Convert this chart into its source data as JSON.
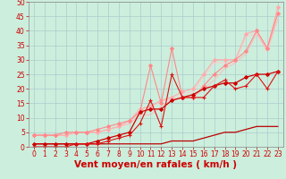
{
  "xlabel": "Vent moyen/en rafales ( km/h )",
  "background_color": "#cceedd",
  "grid_color": "#aacccc",
  "x_values": [
    0,
    1,
    2,
    3,
    4,
    5,
    6,
    7,
    8,
    9,
    10,
    11,
    12,
    13,
    14,
    15,
    16,
    17,
    18,
    19,
    20,
    21,
    22,
    23
  ],
  "line_dark1_y": [
    1,
    1,
    1,
    1,
    1,
    1,
    1,
    1,
    1,
    1,
    1,
    1,
    1,
    2,
    2,
    2,
    3,
    4,
    5,
    5,
    6,
    7,
    7,
    7
  ],
  "line_dark1_color": "#bb0000",
  "line_dark2_y": [
    1,
    1,
    1,
    1,
    1,
    1,
    2,
    3,
    4,
    5,
    12,
    13,
    13,
    16,
    17,
    18,
    20,
    21,
    22,
    22,
    24,
    25,
    25,
    26
  ],
  "line_dark2_color": "#cc0000",
  "line_dark3_y": [
    0,
    0,
    0,
    0,
    1,
    1,
    1,
    2,
    3,
    4,
    8,
    16,
    7,
    25,
    17,
    17,
    17,
    21,
    23,
    20,
    21,
    25,
    20,
    26
  ],
  "line_dark3_color": "#dd1111",
  "line_pink1_y": [
    4,
    4,
    4,
    4,
    5,
    5,
    5,
    6,
    7,
    9,
    13,
    14,
    16,
    17,
    19,
    20,
    25,
    30,
    30,
    30,
    39,
    40,
    34,
    48
  ],
  "line_pink1_color": "#ffaaaa",
  "line_pink2_y": [
    4,
    4,
    4,
    4,
    5,
    5,
    5,
    6,
    7,
    8,
    11,
    11,
    14,
    16,
    17,
    17,
    20,
    23,
    27,
    29,
    32,
    39,
    33,
    44
  ],
  "line_pink2_color": "#ffbbbb",
  "line_pink3_y": [
    4,
    4,
    4,
    5,
    5,
    5,
    6,
    7,
    8,
    9,
    12,
    28,
    15,
    34,
    17,
    17,
    21,
    25,
    28,
    30,
    33,
    40,
    34,
    46
  ],
  "line_pink3_color": "#ff8888",
  "line_pink4_y": [
    4,
    4,
    4,
    4,
    5,
    5,
    5,
    6,
    7,
    8,
    13,
    13,
    16,
    16,
    18,
    19,
    24,
    29,
    29,
    29,
    38,
    39,
    33,
    47
  ],
  "line_pink4_color": "#ffcccc",
  "ylim": [
    0,
    50
  ],
  "xlim": [
    -0.5,
    23.5
  ],
  "yticks": [
    0,
    5,
    10,
    15,
    20,
    25,
    30,
    35,
    40,
    45,
    50
  ],
  "xticks": [
    0,
    1,
    2,
    3,
    4,
    5,
    6,
    7,
    8,
    9,
    10,
    11,
    12,
    13,
    14,
    15,
    16,
    17,
    18,
    19,
    20,
    21,
    22,
    23
  ],
  "tick_color": "#cc0000",
  "axis_label_color": "#cc0000",
  "tick_fontsize": 5.5,
  "xlabel_fontsize": 7.5
}
